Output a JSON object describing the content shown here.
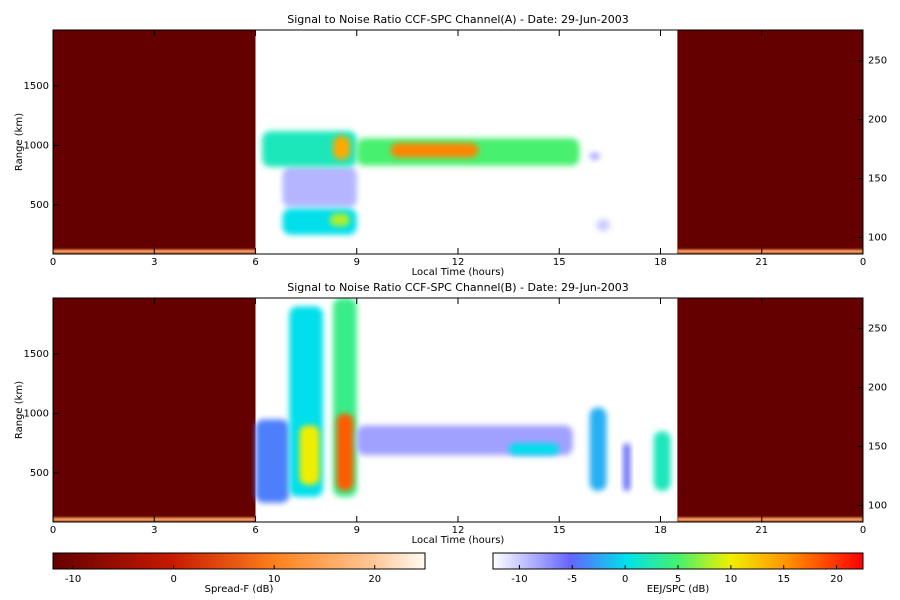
{
  "chart_data": [
    {
      "type": "heatmap",
      "title": "Signal to Noise Ratio CCF-SPC Channel(A) - Date: 29-Jun-2003",
      "x_label": "Local Time (hours)",
      "y_label": "Range (km)",
      "xlim": [
        0,
        24
      ],
      "xticks": [
        0,
        3,
        6,
        9,
        12,
        15,
        18,
        21,
        {
          "value": 24,
          "label": "0"
        }
      ],
      "ylim": [
        88,
        1970
      ],
      "yticks": [
        500,
        1000,
        1500
      ],
      "y2lim": [
        86,
        276
      ],
      "y2ticks": [
        100,
        150,
        200,
        250
      ],
      "spread_f_regions": [
        {
          "time": [
            0,
            6
          ],
          "range": [
            88,
            1970
          ],
          "snr": -12
        },
        {
          "time": [
            18.5,
            24
          ],
          "range": [
            88,
            1970
          ],
          "snr": -12
        },
        {
          "time": [
            0,
            6
          ],
          "range": [
            95,
            125
          ],
          "snr": 16
        },
        {
          "time": [
            18.5,
            24
          ],
          "range": [
            95,
            125
          ],
          "snr": 16
        }
      ],
      "eej_regions": [
        {
          "time": [
            6.8,
            9.0
          ],
          "range": [
            480,
            820
          ],
          "snr": -9
        },
        {
          "time": [
            6.2,
            9.0
          ],
          "range": [
            820,
            1120
          ],
          "snr": 2
        },
        {
          "time": [
            9.0,
            15.6
          ],
          "range": [
            830,
            1060
          ],
          "snr": 5
        },
        {
          "time": [
            10.0,
            12.6
          ],
          "range": [
            900,
            1020
          ],
          "snr": 16
        },
        {
          "time": [
            8.3,
            8.8
          ],
          "range": [
            880,
            1080
          ],
          "snr": 14
        },
        {
          "time": [
            6.8,
            9.0
          ],
          "range": [
            250,
            470
          ],
          "snr": 0
        },
        {
          "time": [
            8.2,
            8.8
          ],
          "range": [
            320,
            430
          ],
          "snr": 8
        },
        {
          "time": [
            15.9,
            16.2
          ],
          "range": [
            880,
            940
          ],
          "snr": -8
        },
        {
          "time": [
            16.1,
            16.5
          ],
          "range": [
            280,
            380
          ],
          "snr": -10
        }
      ]
    },
    {
      "type": "heatmap",
      "title": "Signal to Noise Ratio CCF-SPC Channel(B) - Date: 29-Jun-2003",
      "x_label": "Local Time (hours)",
      "y_label": "Range (km)",
      "xlim": [
        0,
        24
      ],
      "xticks": [
        0,
        3,
        6,
        9,
        12,
        15,
        18,
        21,
        {
          "value": 24,
          "label": "0"
        }
      ],
      "ylim": [
        88,
        1970
      ],
      "yticks": [
        500,
        1000,
        1500
      ],
      "y2lim": [
        86,
        276
      ],
      "y2ticks": [
        100,
        150,
        200,
        250
      ],
      "spread_f_regions": [
        {
          "time": [
            0,
            6
          ],
          "range": [
            88,
            1970
          ],
          "snr": -12
        },
        {
          "time": [
            18.5,
            24
          ],
          "range": [
            88,
            1970
          ],
          "snr": -12
        },
        {
          "time": [
            0,
            6
          ],
          "range": [
            95,
            125
          ],
          "snr": 16
        },
        {
          "time": [
            18.5,
            24
          ],
          "range": [
            95,
            125
          ],
          "snr": 16
        }
      ],
      "eej_regions": [
        {
          "time": [
            6.0,
            7.0
          ],
          "range": [
            250,
            950
          ],
          "snr": -4
        },
        {
          "time": [
            7.0,
            8.0
          ],
          "range": [
            300,
            1900
          ],
          "snr": 0
        },
        {
          "time": [
            7.3,
            7.9
          ],
          "range": [
            400,
            900
          ],
          "snr": 10
        },
        {
          "time": [
            8.3,
            9.0
          ],
          "range": [
            300,
            1970
          ],
          "snr": 4
        },
        {
          "time": [
            8.4,
            8.9
          ],
          "range": [
            350,
            1000
          ],
          "snr": 18
        },
        {
          "time": [
            9.0,
            15.4
          ],
          "range": [
            650,
            900
          ],
          "snr": -8
        },
        {
          "time": [
            13.5,
            15.0
          ],
          "range": [
            650,
            750
          ],
          "snr": 0
        },
        {
          "time": [
            15.9,
            16.4
          ],
          "range": [
            350,
            1050
          ],
          "snr": -2
        },
        {
          "time": [
            16.9,
            17.1
          ],
          "range": [
            350,
            750
          ],
          "snr": -5
        },
        {
          "time": [
            17.8,
            18.3
          ],
          "range": [
            350,
            850
          ],
          "snr": 2
        }
      ]
    }
  ],
  "colorbars": [
    {
      "label": "Spread-F (dB)",
      "lim": [
        -12,
        25
      ],
      "ticks": [
        -10,
        0,
        10,
        20
      ]
    },
    {
      "label": "EEJ/SPC (dB)",
      "lim": [
        -12.5,
        22.5
      ],
      "ticks": [
        -10,
        -5,
        0,
        5,
        10,
        15,
        20
      ]
    }
  ]
}
